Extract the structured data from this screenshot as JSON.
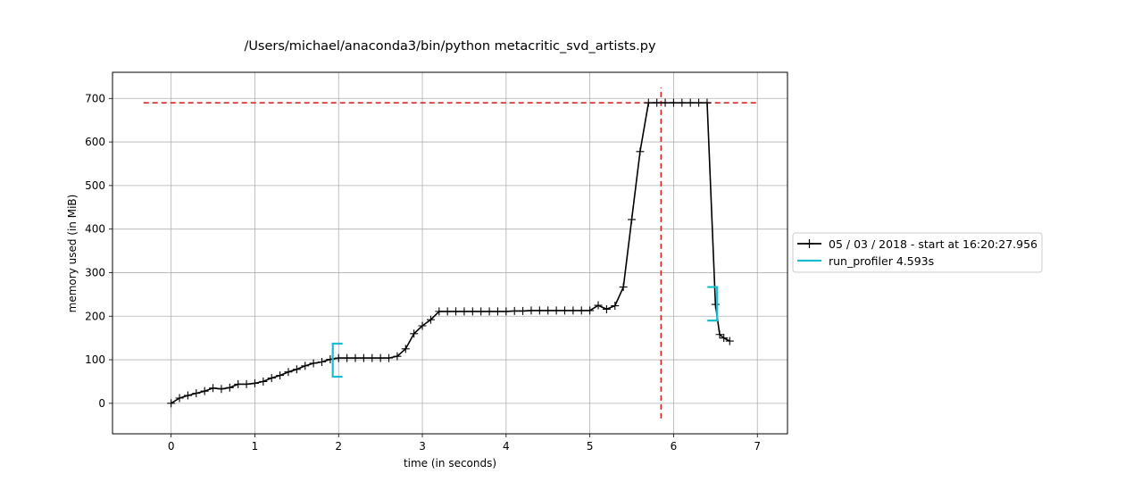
{
  "chart_data": {
    "type": "line",
    "title": "/Users/michael/anaconda3/bin/python metacritic_svd_artists.py",
    "xlabel": "time (in seconds)",
    "ylabel": "memory used (in MiB)",
    "xlim": [
      -0.7,
      7.36
    ],
    "ylim": [
      -70,
      760
    ],
    "xticks": [
      0,
      1,
      2,
      3,
      4,
      5,
      6,
      7
    ],
    "yticks": [
      0,
      100,
      200,
      300,
      400,
      500,
      600,
      700
    ],
    "grid": true,
    "legend_position": "right, outside plot",
    "series": [
      {
        "name": "05 / 03 / 2018 - start at 16:20:27.956",
        "color": "#000000",
        "marker": "+",
        "x": [
          0.0,
          0.1,
          0.2,
          0.3,
          0.4,
          0.5,
          0.6,
          0.7,
          0.8,
          0.9,
          1.0,
          1.1,
          1.2,
          1.3,
          1.4,
          1.5,
          1.6,
          1.7,
          1.8,
          1.9,
          2.0,
          2.1,
          2.2,
          2.3,
          2.4,
          2.5,
          2.6,
          2.7,
          2.8,
          2.9,
          3.0,
          3.1,
          3.2,
          3.3,
          3.4,
          3.5,
          3.6,
          3.7,
          3.8,
          3.9,
          4.0,
          4.1,
          4.2,
          4.3,
          4.4,
          4.5,
          4.6,
          4.7,
          4.8,
          4.9,
          5.0,
          5.1,
          5.2,
          5.3,
          5.4,
          5.5,
          5.6,
          5.7,
          5.8,
          5.9,
          6.0,
          6.1,
          6.2,
          6.3,
          6.4,
          6.5,
          6.55,
          6.6,
          6.67
        ],
        "y": [
          0,
          12,
          18,
          23,
          28,
          35,
          33,
          36,
          44,
          44,
          46,
          50,
          58,
          64,
          72,
          78,
          86,
          92,
          95,
          101,
          104,
          104,
          104,
          104,
          104,
          104,
          104,
          108,
          125,
          160,
          178,
          192,
          211,
          211,
          211,
          211,
          211,
          211,
          211,
          211,
          211,
          212,
          212,
          213,
          213,
          213,
          213,
          213,
          213,
          213,
          213,
          225,
          216,
          224,
          267,
          422,
          578,
          690,
          690,
          690,
          690,
          690,
          690,
          690,
          690,
          227,
          158,
          150,
          143
        ]
      }
    ],
    "function_markers": [
      {
        "name": "run_profiler 4.593s",
        "color": "#17becf",
        "start": 1.93,
        "end": 6.52,
        "start_mem": [
          61,
          137
        ],
        "end_mem": [
          190,
          267
        ]
      }
    ],
    "peak_lines": {
      "color": "#d62728",
      "horizontal_y": 690,
      "horizontal_x_range": [
        -0.33,
        7.0
      ],
      "vertical_x": 5.85,
      "vertical_y_range": [
        -35,
        725
      ]
    }
  }
}
